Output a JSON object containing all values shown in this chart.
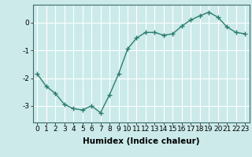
{
  "x": [
    0,
    1,
    2,
    3,
    4,
    5,
    6,
    7,
    8,
    9,
    10,
    11,
    12,
    13,
    14,
    15,
    16,
    17,
    18,
    19,
    20,
    21,
    22,
    23
  ],
  "y": [
    -1.85,
    -2.3,
    -2.55,
    -2.95,
    -3.1,
    -3.15,
    -3.0,
    -3.25,
    -2.6,
    -1.85,
    -0.95,
    -0.55,
    -0.35,
    -0.35,
    -0.45,
    -0.4,
    -0.12,
    0.1,
    0.25,
    0.38,
    0.2,
    -0.15,
    -0.35,
    -0.4
  ],
  "line_color": "#2d7d6e",
  "marker": "+",
  "marker_size": 4,
  "bg_color": "#cceaea",
  "grid_color": "#ffffff",
  "xlabel": "Humidex (Indice chaleur)",
  "ylim": [
    -3.6,
    0.65
  ],
  "xlim": [
    -0.5,
    23.5
  ],
  "yticks": [
    0,
    -1,
    -2,
    -3
  ],
  "xtick_labels": [
    "0",
    "1",
    "2",
    "3",
    "4",
    "5",
    "6",
    "7",
    "8",
    "9",
    "10",
    "11",
    "12",
    "13",
    "14",
    "15",
    "16",
    "17",
    "18",
    "19",
    "20",
    "21",
    "22",
    "23"
  ],
  "xlabel_fontsize": 7.5,
  "tick_fontsize": 6.5,
  "axis_color": "#3d6b6b",
  "line_width": 1.0,
  "marker_color": "#2d7d6e"
}
